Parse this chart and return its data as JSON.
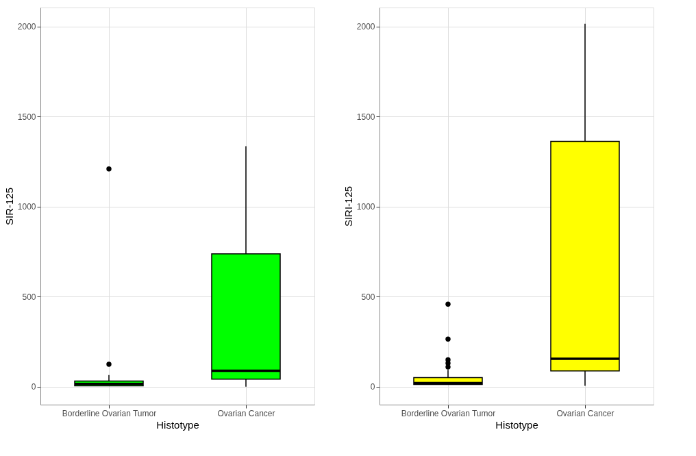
{
  "chart_data": [
    {
      "type": "box",
      "xlabel": "Histotype",
      "ylabel": "SIR-125",
      "categories": [
        "Borderline Ovarian Tumor",
        "Ovarian Cancer"
      ],
      "colors": [
        "#00ff00",
        "#00ff00"
      ],
      "boxes": [
        {
          "low": 5,
          "q1": 5,
          "median": 15,
          "q3": 31,
          "high": 64,
          "outliers": [
            124,
            1209
          ]
        },
        {
          "low": 0,
          "q1": 42,
          "median": 88,
          "q3": 737,
          "high": 1335
        }
      ],
      "ylim": [
        -100,
        2105
      ],
      "yticks": [
        0,
        500,
        1000,
        1500,
        2000
      ],
      "grid": true
    },
    {
      "type": "box",
      "xlabel": "Histotype",
      "ylabel": "SIRI-125",
      "categories": [
        "Borderline Ovarian Tumor",
        "Ovarian Cancer"
      ],
      "colors": [
        "#ffff00",
        "#ffff00"
      ],
      "boxes": [
        {
          "low": 12,
          "q1": 12,
          "median": 20,
          "q3": 50,
          "high": 93,
          "outliers": [
            109,
            130,
            149,
            264,
            458
          ]
        },
        {
          "low": 5,
          "q1": 87,
          "median": 155,
          "q3": 1362,
          "high": 2015
        }
      ],
      "ylim": [
        -100,
        2105
      ],
      "yticks": [
        0,
        500,
        1000,
        1500,
        2000
      ],
      "grid": true
    }
  ]
}
